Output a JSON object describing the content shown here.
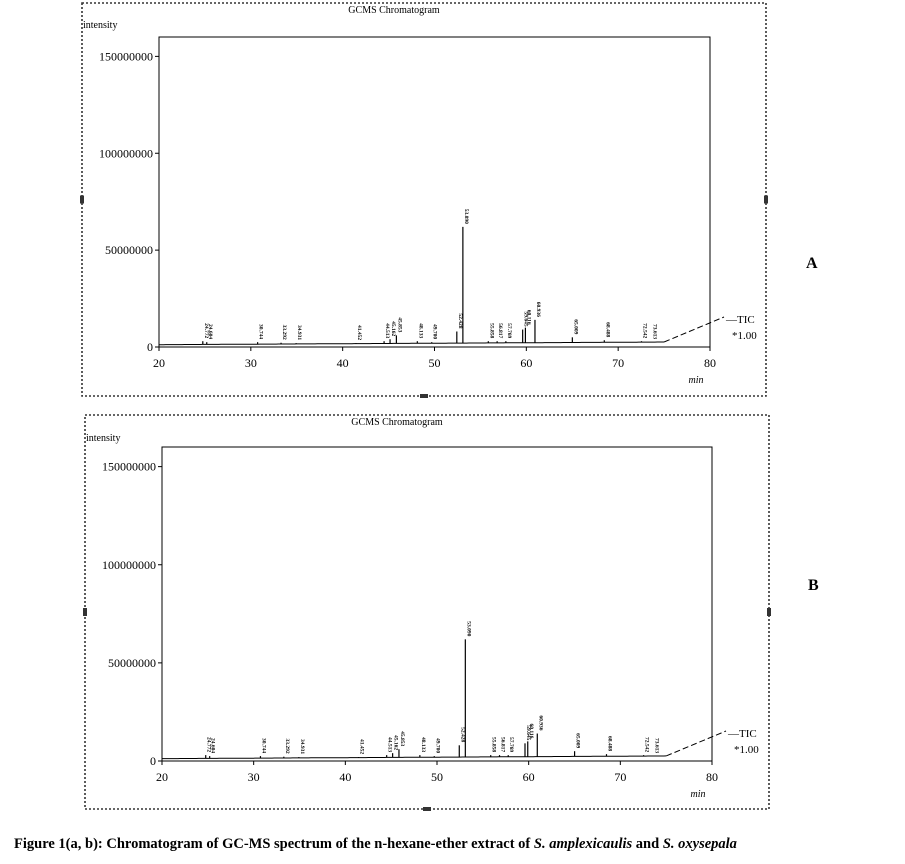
{
  "caption": {
    "lead": "Figure 1(a, b): Chromatogram of GC-MS spectrum of the n-hexane-ether extract of ",
    "species1": "S. amplexicaulis",
    "and": " and ",
    "species2": "S. oxysepala"
  },
  "chart_data": [
    {
      "panel_label": "A",
      "type": "line",
      "title": "GCMS Chromatogram",
      "ylabel": "intensity",
      "xlabel": "min",
      "xlim": [
        20,
        80
      ],
      "ylim": [
        0,
        160000000
      ],
      "xticks": [
        "20",
        "30",
        "40",
        "50",
        "60",
        "70",
        "80"
      ],
      "yticks": [
        "0",
        "50000000",
        "100000000",
        "150000000"
      ],
      "trace_label": "TIC",
      "scale_label": "*1.00",
      "peaks": [
        {
          "label": "24.772",
          "x": 24.77,
          "y": 3000000
        },
        {
          "label": "24.604",
          "x": 25.2,
          "y": 2500000
        },
        {
          "label": "30.744",
          "x": 30.74,
          "y": 2500000
        },
        {
          "label": "33.292",
          "x": 33.29,
          "y": 2200000
        },
        {
          "label": "34.931",
          "x": 34.93,
          "y": 2000000
        },
        {
          "label": "41.452",
          "x": 41.45,
          "y": 2000000
        },
        {
          "label": "44.513",
          "x": 44.51,
          "y": 3000000
        },
        {
          "label": "45.162",
          "x": 45.16,
          "y": 4000000
        },
        {
          "label": "45.853",
          "x": 45.85,
          "y": 6000000
        },
        {
          "label": "48.133",
          "x": 48.13,
          "y": 3000000
        },
        {
          "label": "49.700",
          "x": 49.7,
          "y": 2500000
        },
        {
          "label": "52.428",
          "x": 52.43,
          "y": 8000000
        },
        {
          "label": "53.090",
          "x": 53.09,
          "y": 62000000
        },
        {
          "label": "55.858",
          "x": 55.86,
          "y": 3000000
        },
        {
          "label": "56.817",
          "x": 56.82,
          "y": 3000000
        },
        {
          "label": "57.769",
          "x": 57.77,
          "y": 3000000
        },
        {
          "label": "59.645",
          "x": 59.6,
          "y": 9000000
        },
        {
          "label": "60.116",
          "x": 59.9,
          "y": 10000000
        },
        {
          "label": "60.936",
          "x": 60.94,
          "y": 14000000
        },
        {
          "label": "65.009",
          "x": 65.01,
          "y": 5000000
        },
        {
          "label": "68.488",
          "x": 68.49,
          "y": 3500000
        },
        {
          "label": "72.542",
          "x": 72.54,
          "y": 3000000
        },
        {
          "label": "73.613",
          "x": 73.61,
          "y": 2500000
        }
      ]
    },
    {
      "panel_label": "B",
      "type": "line",
      "title": "GCMS Chromatogram",
      "ylabel": "intensity",
      "xlabel": "min",
      "xlim": [
        20,
        80
      ],
      "ylim": [
        0,
        160000000
      ],
      "xticks": [
        "20",
        "30",
        "40",
        "50",
        "60",
        "70",
        "80"
      ],
      "yticks": [
        "0",
        "50000000",
        "100000000",
        "150000000"
      ],
      "trace_label": "TIC",
      "scale_label": "*1.00",
      "peaks": [
        {
          "label": "24.772",
          "x": 24.77,
          "y": 3000000
        },
        {
          "label": "24.604",
          "x": 25.2,
          "y": 2500000
        },
        {
          "label": "30.744",
          "x": 30.74,
          "y": 2500000
        },
        {
          "label": "33.292",
          "x": 33.29,
          "y": 2200000
        },
        {
          "label": "34.931",
          "x": 34.93,
          "y": 2000000
        },
        {
          "label": "41.452",
          "x": 41.45,
          "y": 2000000
        },
        {
          "label": "44.513",
          "x": 44.51,
          "y": 3000000
        },
        {
          "label": "45.162",
          "x": 45.16,
          "y": 4000000
        },
        {
          "label": "45.853",
          "x": 45.85,
          "y": 6000000
        },
        {
          "label": "48.133",
          "x": 48.13,
          "y": 3000000
        },
        {
          "label": "49.700",
          "x": 49.7,
          "y": 2500000
        },
        {
          "label": "52.428",
          "x": 52.43,
          "y": 8000000
        },
        {
          "label": "53.090",
          "x": 53.09,
          "y": 62000000
        },
        {
          "label": "55.858",
          "x": 55.86,
          "y": 3000000
        },
        {
          "label": "56.817",
          "x": 56.82,
          "y": 3000000
        },
        {
          "label": "57.769",
          "x": 57.77,
          "y": 3000000
        },
        {
          "label": "59.645",
          "x": 59.6,
          "y": 9000000
        },
        {
          "label": "60.116",
          "x": 59.9,
          "y": 10000000
        },
        {
          "label": "60.936",
          "x": 60.94,
          "y": 14000000
        },
        {
          "label": "65.009",
          "x": 65.01,
          "y": 5000000
        },
        {
          "label": "68.488",
          "x": 68.49,
          "y": 3500000
        },
        {
          "label": "72.542",
          "x": 72.54,
          "y": 3000000
        },
        {
          "label": "73.613",
          "x": 73.61,
          "y": 2500000
        }
      ]
    }
  ]
}
